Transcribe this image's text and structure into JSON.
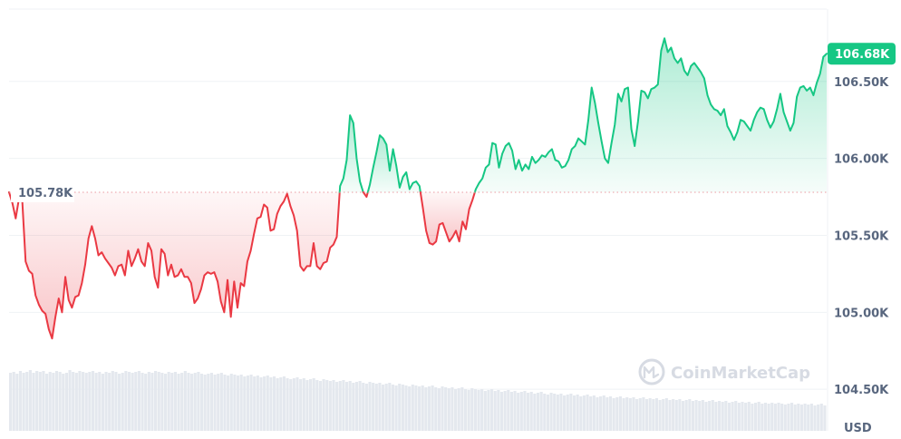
{
  "chart_data": {
    "type": "line",
    "yticks": [
      "104.50K",
      "105.00K",
      "105.50K",
      "106.00K",
      "106.50K"
    ],
    "ytick_values": [
      104500,
      105000,
      105500,
      106000,
      106500
    ],
    "ylim": [
      104230,
      106970
    ],
    "reference": {
      "label": "105.78K",
      "value": 105780
    },
    "current": {
      "label": "106.68K",
      "value": 106680
    },
    "unit": "USD",
    "watermark": "CoinMarketCap",
    "colors": {
      "up": "#16c784",
      "down": "#ea3943",
      "up_fill": "#16c784",
      "down_fill": "#ea3943",
      "grid": "#eff2f5",
      "axis_text": "#58667e",
      "ref_line": "#ea9aa0",
      "volume": "#e4e8ee"
    },
    "series": [
      {
        "values": [
          105780,
          105710,
          105610,
          105740,
          105720,
          105330,
          105270,
          105250,
          105110,
          105050,
          105010,
          104990,
          104890,
          104830,
          104970,
          105090,
          105000,
          105230,
          105080,
          105030,
          105100,
          105110,
          105190,
          105310,
          105480,
          105560,
          105480,
          105370,
          105390,
          105350,
          105320,
          105290,
          105240,
          105300,
          105310,
          105240,
          105400,
          105300,
          105350,
          105410,
          105330,
          105300,
          105450,
          105400,
          105230,
          105160,
          105410,
          105380,
          105240,
          105310,
          105230,
          105240,
          105280,
          105230,
          105230,
          105190,
          105060,
          105090,
          105150,
          105240,
          105260,
          105250,
          105260,
          105200,
          105070,
          105000,
          105210,
          104970,
          105200,
          105030,
          105190,
          105170,
          105330,
          105400,
          105510,
          105610,
          105620,
          105700,
          105680,
          105530,
          105540,
          105640,
          105690,
          105720,
          105770,
          105690,
          105630,
          105530,
          105300,
          105270,
          105300,
          105300,
          105450,
          105300,
          105280,
          105320,
          105330,
          105420,
          105440,
          105490,
          105820,
          105870,
          105990,
          106280,
          106230,
          106000,
          105850,
          105780,
          105750,
          105830,
          105940,
          106040,
          106150,
          106130,
          106090,
          105920,
          106060,
          105950,
          105810,
          105880,
          105910,
          105800,
          105840,
          105850,
          105820,
          105680,
          105530,
          105450,
          105440,
          105460,
          105570,
          105580,
          105520,
          105460,
          105490,
          105530,
          105460,
          105590,
          105540,
          105670,
          105730,
          105800,
          105840,
          105870,
          105940,
          105960,
          106100,
          106090,
          105940,
          106030,
          106080,
          106100,
          106050,
          105930,
          105990,
          105920,
          105960,
          105930,
          106010,
          105970,
          105990,
          106020,
          106010,
          106040,
          106060,
          105990,
          105980,
          105940,
          105950,
          105990,
          106060,
          106080,
          106130,
          106110,
          106090,
          106250,
          106460,
          106360,
          106230,
          106110,
          106000,
          105970,
          106100,
          106220,
          106420,
          106370,
          106450,
          106460,
          106190,
          106080,
          106240,
          106440,
          106430,
          106390,
          106450,
          106460,
          106480,
          106700,
          106780,
          106690,
          106720,
          106650,
          106620,
          106650,
          106570,
          106540,
          106600,
          106620,
          106590,
          106560,
          106520,
          106410,
          106350,
          106320,
          106310,
          106280,
          106320,
          106210,
          106170,
          106120,
          106170,
          106250,
          106240,
          106210,
          106180,
          106250,
          106300,
          106330,
          106320,
          106250,
          106200,
          106240,
          106320,
          106420,
          106300,
          106240,
          106180,
          106230,
          106400,
          106460,
          106470,
          106440,
          106460,
          106410,
          106490,
          106550,
          106660,
          106680
        ]
      }
    ],
    "volume": [
      0.64,
      0.65,
      0.63,
      0.66,
      0.64,
      0.65,
      0.67,
      0.64,
      0.66,
      0.65,
      0.66,
      0.63,
      0.65,
      0.64,
      0.66,
      0.65,
      0.63,
      0.64,
      0.67,
      0.65,
      0.64,
      0.66,
      0.65,
      0.64,
      0.65,
      0.66,
      0.64,
      0.65,
      0.63,
      0.65,
      0.64,
      0.66,
      0.65,
      0.63,
      0.64,
      0.66,
      0.65,
      0.64,
      0.65,
      0.66,
      0.64,
      0.63,
      0.65,
      0.64,
      0.66,
      0.65,
      0.64,
      0.63,
      0.65,
      0.64,
      0.65,
      0.63,
      0.64,
      0.66,
      0.64,
      0.63,
      0.64,
      0.65,
      0.63,
      0.62,
      0.63,
      0.64,
      0.62,
      0.63,
      0.64,
      0.62,
      0.61,
      0.63,
      0.62,
      0.61,
      0.62,
      0.6,
      0.61,
      0.62,
      0.6,
      0.61,
      0.59,
      0.6,
      0.61,
      0.59,
      0.6,
      0.58,
      0.59,
      0.6,
      0.58,
      0.57,
      0.58,
      0.59,
      0.57,
      0.58,
      0.56,
      0.57,
      0.58,
      0.56,
      0.55,
      0.57,
      0.56,
      0.55,
      0.56,
      0.54,
      0.55,
      0.56,
      0.54,
      0.55,
      0.53,
      0.54,
      0.55,
      0.53,
      0.52,
      0.54,
      0.53,
      0.52,
      0.53,
      0.51,
      0.52,
      0.53,
      0.51,
      0.5,
      0.52,
      0.51,
      0.5,
      0.49,
      0.51,
      0.5,
      0.49,
      0.5,
      0.48,
      0.49,
      0.5,
      0.48,
      0.47,
      0.49,
      0.48,
      0.47,
      0.48,
      0.46,
      0.47,
      0.48,
      0.46,
      0.45,
      0.47,
      0.46,
      0.45,
      0.46,
      0.44,
      0.45,
      0.46,
      0.44,
      0.45,
      0.43,
      0.44,
      0.45,
      0.43,
      0.44,
      0.42,
      0.43,
      0.44,
      0.42,
      0.43,
      0.41,
      0.42,
      0.43,
      0.41,
      0.4,
      0.42,
      0.41,
      0.4,
      0.41,
      0.39,
      0.4,
      0.41,
      0.39,
      0.4,
      0.38,
      0.39,
      0.4,
      0.38,
      0.39,
      0.37,
      0.38,
      0.39,
      0.37,
      0.38,
      0.36,
      0.37,
      0.38,
      0.36,
      0.37,
      0.36,
      0.37,
      0.35,
      0.36,
      0.37,
      0.35,
      0.36,
      0.35,
      0.36,
      0.34,
      0.35,
      0.36,
      0.34,
      0.35,
      0.34,
      0.35,
      0.33,
      0.34,
      0.35,
      0.33,
      0.34,
      0.33,
      0.34,
      0.32,
      0.33,
      0.34,
      0.32,
      0.33,
      0.32,
      0.33,
      0.31,
      0.32,
      0.33,
      0.31,
      0.32,
      0.31,
      0.32,
      0.3,
      0.31,
      0.32,
      0.3,
      0.31,
      0.3,
      0.31,
      0.3,
      0.31,
      0.3,
      0.29,
      0.3,
      0.31,
      0.29,
      0.3,
      0.29,
      0.3,
      0.29,
      0.3,
      0.28,
      0.29,
      0.3,
      0.28
    ]
  }
}
